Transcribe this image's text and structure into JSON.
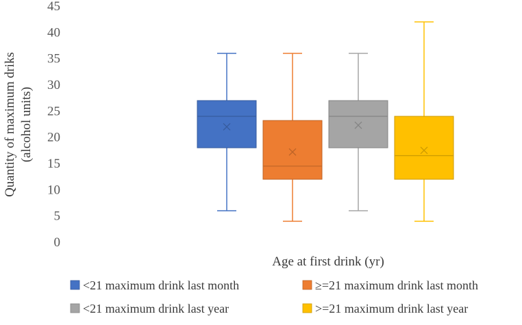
{
  "chart_data": {
    "type": "boxplot",
    "title": "",
    "xlabel": "Age at first drink (yr)",
    "ylabel_lines": [
      "Quantity of maximum driks",
      "(alcohol units)"
    ],
    "ylim": [
      0,
      45
    ],
    "yticks": [
      0,
      5,
      10,
      15,
      20,
      25,
      30,
      35,
      40,
      45
    ],
    "grid": false,
    "legend_position": "bottom",
    "series": [
      {
        "name": "<21 maximum drink last month",
        "color": "#4472c4",
        "min": 6,
        "q1": 18,
        "median": 24,
        "q3": 27,
        "max": 36,
        "mean": 22
      },
      {
        "name": "≥=21 maximum drink last month",
        "color": "#ed7d31",
        "min": 4,
        "q1": 12,
        "median": 14.5,
        "q3": 23.2,
        "max": 36,
        "mean": 17.2
      },
      {
        "name": "<21 maximum drink last year",
        "color": "#a5a5a5",
        "min": 6,
        "q1": 18,
        "median": 24,
        "q3": 27,
        "max": 36,
        "mean": 22.3
      },
      {
        "name": ">=21 maximum drink last year",
        "color": "#ffc000",
        "min": 4,
        "q1": 12,
        "median": 16.5,
        "q3": 24,
        "max": 42,
        "mean": 17.5
      }
    ]
  }
}
